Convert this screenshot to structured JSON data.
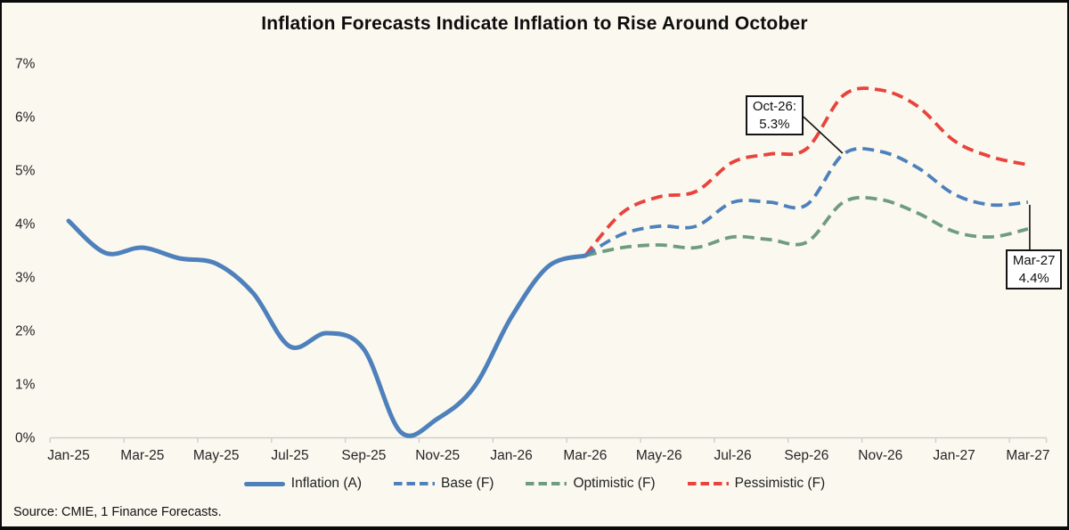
{
  "title": "Inflation Forecasts Indicate Inflation to Rise Around October",
  "source": "Source: CMIE, 1 Finance Forecasts.",
  "colors": {
    "background": "#FAF8EF",
    "actual_blue": "#4E80BC",
    "base_blue": "#4E80BC",
    "optimistic_green": "#6F9C80",
    "pessimistic_red": "#E8433C",
    "axis_gray": "#D0CEC7",
    "label_text": "#262626",
    "callout_black": "#141414"
  },
  "chart_data": {
    "type": "line",
    "title": "Inflation Forecasts Indicate Inflation to Rise Around October",
    "xlabel": "",
    "ylabel": "",
    "ylim": [
      0,
      7
    ],
    "grid": false,
    "legend_position": "bottom",
    "months": [
      "Jan-25",
      "Feb-25",
      "Mar-25",
      "Apr-25",
      "May-25",
      "Jun-25",
      "Jul-25",
      "Aug-25",
      "Sep-25",
      "Oct-25",
      "Nov-25",
      "Dec-25",
      "Jan-26",
      "Feb-26",
      "Mar-26",
      "Apr-26",
      "May-26",
      "Jun-26",
      "Jul-26",
      "Aug-26",
      "Sep-26",
      "Oct-26",
      "Nov-26",
      "Dec-26",
      "Jan-27",
      "Feb-27",
      "Mar-27"
    ],
    "x_tick_labels": [
      "Jan-25",
      "Mar-25",
      "May-25",
      "Jul-25",
      "Sep-25",
      "Nov-25",
      "Jan-26",
      "Mar-26",
      "May-26",
      "Jul-26",
      "Sep-26",
      "Nov-26",
      "Jan-27",
      "Mar-27"
    ],
    "y_tick_labels": [
      "0%",
      "1%",
      "2%",
      "3%",
      "4%",
      "5%",
      "6%",
      "7%"
    ],
    "series": [
      {
        "name": "Optimistic (F)",
        "line": "dashed",
        "color": "#6F9C80",
        "start_month": "Mar-26",
        "values": [
          3.4,
          3.55,
          3.6,
          3.55,
          3.75,
          3.7,
          3.65,
          4.4,
          4.45,
          4.2,
          3.85,
          3.75,
          3.9
        ]
      },
      {
        "name": "Pessimistic (F)",
        "line": "dashed",
        "color": "#E8433C",
        "start_month": "Mar-26",
        "values": [
          3.4,
          4.2,
          4.5,
          4.6,
          5.15,
          5.3,
          5.4,
          6.4,
          6.5,
          6.2,
          5.55,
          5.25,
          5.1
        ]
      },
      {
        "name": "Base (F)",
        "line": "dashed",
        "color": "#4E80BC",
        "start_month": "Mar-26",
        "values": [
          3.4,
          3.8,
          3.95,
          3.95,
          4.4,
          4.4,
          4.35,
          5.3,
          5.35,
          5.05,
          4.55,
          4.35,
          4.4
        ]
      },
      {
        "name": "Inflation (A)",
        "line": "solid",
        "color": "#4E80BC",
        "start_month": "Jan-25",
        "values": [
          4.05,
          3.45,
          3.55,
          3.35,
          3.25,
          2.7,
          1.7,
          1.95,
          1.65,
          0.1,
          0.35,
          0.95,
          2.25,
          3.2,
          3.4
        ]
      }
    ],
    "legend_order": [
      "Inflation (A)",
      "Base (F)",
      "Optimistic (F)",
      "Pessimistic (F)"
    ],
    "annotations": [
      {
        "id": "oct-26",
        "lines": [
          "Oct-26:",
          "5.3%"
        ],
        "series": "Base (F)",
        "month": "Oct-26",
        "value": 5.3
      },
      {
        "id": "mar-27",
        "lines": [
          "Mar-27",
          "4.4%"
        ],
        "series": "Base (F)",
        "month": "Mar-27",
        "value": 4.4
      }
    ]
  }
}
